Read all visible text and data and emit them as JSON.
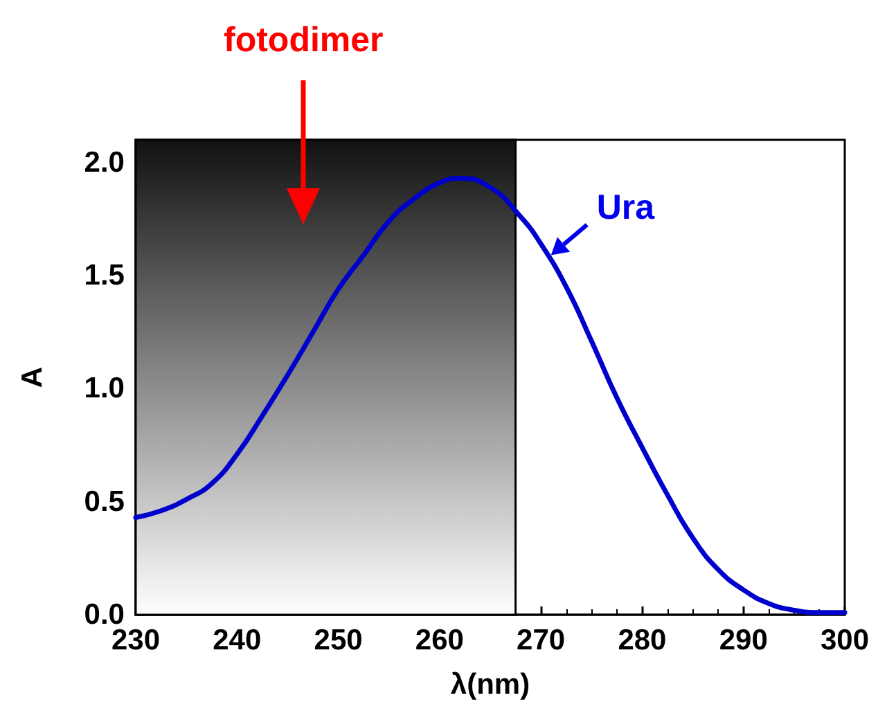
{
  "chart_data": {
    "type": "line",
    "xlabel": "λ(nm)",
    "ylabel": "A",
    "x": [
      230,
      232.5,
      235,
      237.5,
      240,
      242.5,
      245,
      247.5,
      250,
      252.5,
      255,
      257.5,
      260,
      262,
      265,
      268,
      270,
      272.5,
      275,
      277.5,
      280,
      282.5,
      285,
      287.5,
      290,
      292.5,
      295,
      297.5,
      300
    ],
    "series": [
      {
        "color": "#0000cc",
        "values": [
          0.43,
          0.46,
          0.51,
          0.58,
          0.71,
          0.88,
          1.06,
          1.25,
          1.44,
          1.59,
          1.74,
          1.84,
          1.91,
          1.93,
          1.89,
          1.76,
          1.64,
          1.45,
          1.21,
          0.96,
          0.74,
          0.53,
          0.34,
          0.2,
          0.11,
          0.05,
          0.02,
          0.01,
          0.01
        ]
      }
    ],
    "xlim": [
      230,
      300
    ],
    "xticks": [
      230,
      240,
      250,
      260,
      270,
      280,
      290,
      300
    ],
    "ylim": [
      0,
      2.1
    ],
    "yticks": [
      {
        "value": 0,
        "label": "0.0"
      },
      0.5,
      {
        "value": 1,
        "label": "1.0"
      },
      1.5,
      {
        "value": 2,
        "label": "2.0"
      }
    ],
    "bands": [
      {
        "axis": "x",
        "from": 230,
        "to": 267.5
      }
    ],
    "annotations": [
      "fotodimer",
      {
        "text": "Ura",
        "x": 271,
        "y": 1.59
      }
    ],
    "marker": "none",
    "line_style": "solid"
  }
}
